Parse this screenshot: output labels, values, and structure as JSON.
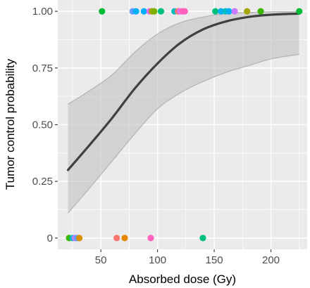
{
  "chart_data": {
    "type": "scatter",
    "xlabel": "Absorbed dose (Gy)",
    "ylabel": "Tumor control probability",
    "xlim": [
      12,
      232
    ],
    "ylim": [
      -0.05,
      1.05
    ],
    "x_ticks": [
      {
        "value": 50,
        "label": "50"
      },
      {
        "value": 100,
        "label": "100"
      },
      {
        "value": 150,
        "label": "150"
      },
      {
        "value": 200,
        "label": "200"
      }
    ],
    "y_ticks": [
      {
        "value": 0,
        "label": "0"
      },
      {
        "value": 0.25,
        "label": "0.25"
      },
      {
        "value": 0.5,
        "label": "0.50"
      },
      {
        "value": 0.75,
        "label": "0.75"
      },
      {
        "value": 1.0,
        "label": "1.00"
      }
    ],
    "grid": true,
    "legend": "none",
    "panel_color": "#ebebeb",
    "grid_color": "#ffffff",
    "fit_color": "#404040",
    "band_color": "#bdbdbd",
    "fit_curve": {
      "x": [
        21,
        40,
        60,
        80,
        100,
        120,
        140,
        160,
        180,
        200,
        225
      ],
      "y": [
        0.3,
        0.41,
        0.53,
        0.66,
        0.77,
        0.86,
        0.92,
        0.955,
        0.975,
        0.985,
        0.99
      ]
    },
    "confidence_band": {
      "x": [
        21,
        40,
        60,
        80,
        100,
        120,
        140,
        160,
        180,
        200,
        225
      ],
      "lower": [
        0.11,
        0.22,
        0.34,
        0.46,
        0.57,
        0.64,
        0.69,
        0.73,
        0.76,
        0.79,
        0.81
      ],
      "upper": [
        0.59,
        0.65,
        0.72,
        0.82,
        0.9,
        0.95,
        0.975,
        0.99,
        0.995,
        0.998,
        0.999
      ]
    },
    "points": [
      {
        "x": 51,
        "y": 1,
        "color": "#00ba38"
      },
      {
        "x": 78,
        "y": 1,
        "color": "#619cff"
      },
      {
        "x": 81,
        "y": 1,
        "color": "#00b0f6"
      },
      {
        "x": 88,
        "y": 1,
        "color": "#00b0f6"
      },
      {
        "x": 93,
        "y": 1,
        "color": "#e76bf3"
      },
      {
        "x": 95,
        "y": 1,
        "color": "#a3a500"
      },
      {
        "x": 97,
        "y": 1,
        "color": "#7cae00"
      },
      {
        "x": 103,
        "y": 1,
        "color": "#00bf7d"
      },
      {
        "x": 115,
        "y": 1,
        "color": "#00bfc4"
      },
      {
        "x": 118,
        "y": 1,
        "color": "#f8766d"
      },
      {
        "x": 120,
        "y": 1,
        "color": "#e76bf3"
      },
      {
        "x": 122,
        "y": 1,
        "color": "#ff62bc"
      },
      {
        "x": 124,
        "y": 1,
        "color": "#ff62bc"
      },
      {
        "x": 151,
        "y": 1,
        "color": "#00bf7d"
      },
      {
        "x": 156,
        "y": 1,
        "color": "#00b0f6"
      },
      {
        "x": 160,
        "y": 1,
        "color": "#00bfc4"
      },
      {
        "x": 163,
        "y": 1,
        "color": "#00b0f6"
      },
      {
        "x": 168,
        "y": 1,
        "color": "#c77cff"
      },
      {
        "x": 179,
        "y": 1,
        "color": "#a3a500"
      },
      {
        "x": 191,
        "y": 1,
        "color": "#39b600"
      },
      {
        "x": 225,
        "y": 1,
        "color": "#00ba38"
      },
      {
        "x": 22,
        "y": 0,
        "color": "#39b600"
      },
      {
        "x": 25,
        "y": 0,
        "color": "#00bfc4"
      },
      {
        "x": 27,
        "y": 0,
        "color": "#c77cff"
      },
      {
        "x": 29,
        "y": 0,
        "color": "#619cff"
      },
      {
        "x": 31,
        "y": 0,
        "color": "#d89000"
      },
      {
        "x": 64,
        "y": 0,
        "color": "#f8766d"
      },
      {
        "x": 71,
        "y": 0,
        "color": "#e58700"
      },
      {
        "x": 94,
        "y": 0,
        "color": "#ff62bc"
      },
      {
        "x": 140,
        "y": 0,
        "color": "#00bf7d"
      }
    ]
  }
}
